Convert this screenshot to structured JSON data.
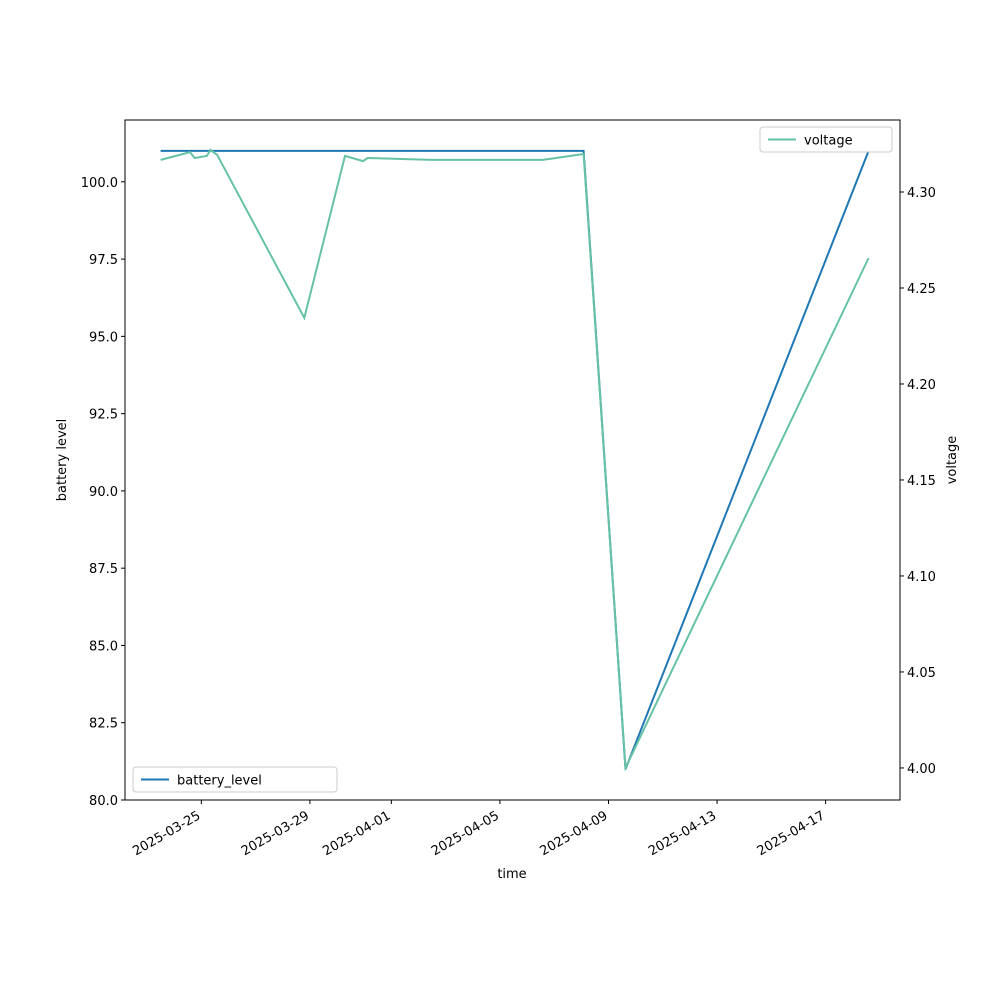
{
  "chart_data": {
    "type": "line",
    "xlabel": "time",
    "ylabel": "battery level",
    "y2label": "voltage",
    "xlim": [
      "2025-03-22 04:30",
      "2025-04-19 17:45"
    ],
    "xticks": [
      "2025-03-25",
      "2025-03-29",
      "2025-04-01",
      "2025-04-05",
      "2025-04-09",
      "2025-04-13",
      "2025-04-17"
    ],
    "ylim": [
      80,
      102
    ],
    "yticks": [
      {
        "value": 80,
        "label": "80.0"
      },
      82.5,
      {
        "value": 85,
        "label": "85.0"
      },
      87.5,
      {
        "value": 90,
        "label": "90.0"
      },
      92.5,
      {
        "value": 95,
        "label": "95.0"
      },
      97.5,
      {
        "value": 100,
        "label": "100.0"
      }
    ],
    "y2lim": [
      3.9833,
      4.3375
    ],
    "y2ticks": [
      {
        "value": 4.0,
        "label": "4.00"
      },
      4.05,
      {
        "value": 4.1,
        "label": "4.10"
      },
      4.15,
      {
        "value": 4.2,
        "label": "4.20"
      },
      4.25,
      {
        "value": 4.3,
        "label": "4.30"
      }
    ],
    "series": [
      {
        "name": "battery_level",
        "color": "#1f77b4",
        "axis": "y",
        "legend_loc": "lower left",
        "x": [
          "2025-03-23 12:00",
          "2025-04-08 02:00",
          "2025-04-09 15:00",
          "2025-04-18 14:00"
        ],
        "values": [
          101,
          101,
          81,
          101
        ]
      },
      {
        "name": "voltage",
        "color": "#66c2a5",
        "axis": "y2",
        "legend_loc": "upper right",
        "x": [
          "2025-03-23 12:00",
          "2025-03-24 14:00",
          "2025-03-24 18:00",
          "2025-03-25 05:00",
          "2025-03-25 08:00",
          "2025-03-25 14:00",
          "2025-03-28 19:00",
          "2025-03-30 07:00",
          "2025-03-30 23:00",
          "2025-03-31 03:00",
          "2025-04-02 12:00",
          "2025-04-06 14:00",
          "2025-04-08 02:00",
          "2025-04-09 15:00",
          "2025-04-18 14:00"
        ],
        "values": [
          4.3167,
          4.3208,
          4.3177,
          4.3188,
          4.3219,
          4.3193,
          4.2344,
          4.3188,
          4.3161,
          4.3177,
          4.3167,
          4.3167,
          4.3198,
          4.0,
          4.2656
        ]
      }
    ]
  }
}
